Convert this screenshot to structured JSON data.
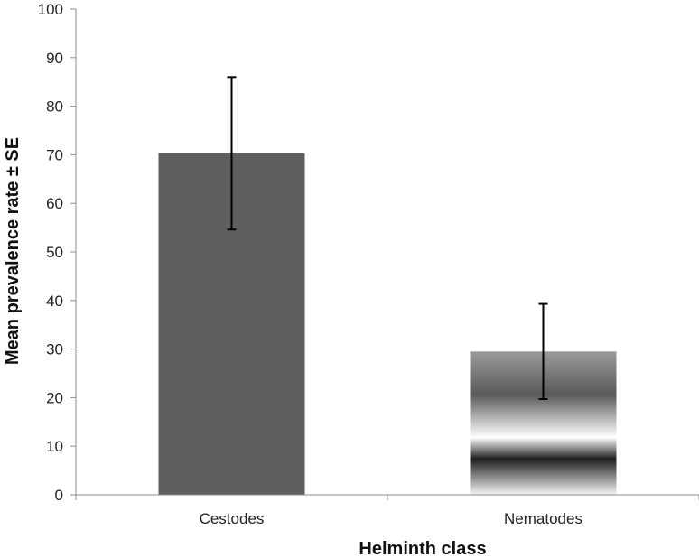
{
  "chart_data": {
    "type": "bar",
    "categories": [
      "Cestodes",
      "Nematodes"
    ],
    "values": [
      70.3,
      29.5
    ],
    "error": [
      15.7,
      9.8
    ],
    "xlabel": "Helminth  class",
    "ylabel": "Mean prevalence rate ± SE",
    "ylim": [
      0,
      100
    ],
    "yticks": [
      0,
      10,
      20,
      30,
      40,
      50,
      60,
      70,
      80,
      90,
      100
    ],
    "grid": false,
    "legend": "none",
    "colors": {
      "cestodes_bar": "#5f5f5f",
      "nematodes_gradient": [
        "#5a5a5a",
        "#ffffff",
        "#1e1e1e",
        "#f5f5f5"
      ],
      "axis": "#8c8c8c",
      "error_bar": "#000000"
    }
  }
}
